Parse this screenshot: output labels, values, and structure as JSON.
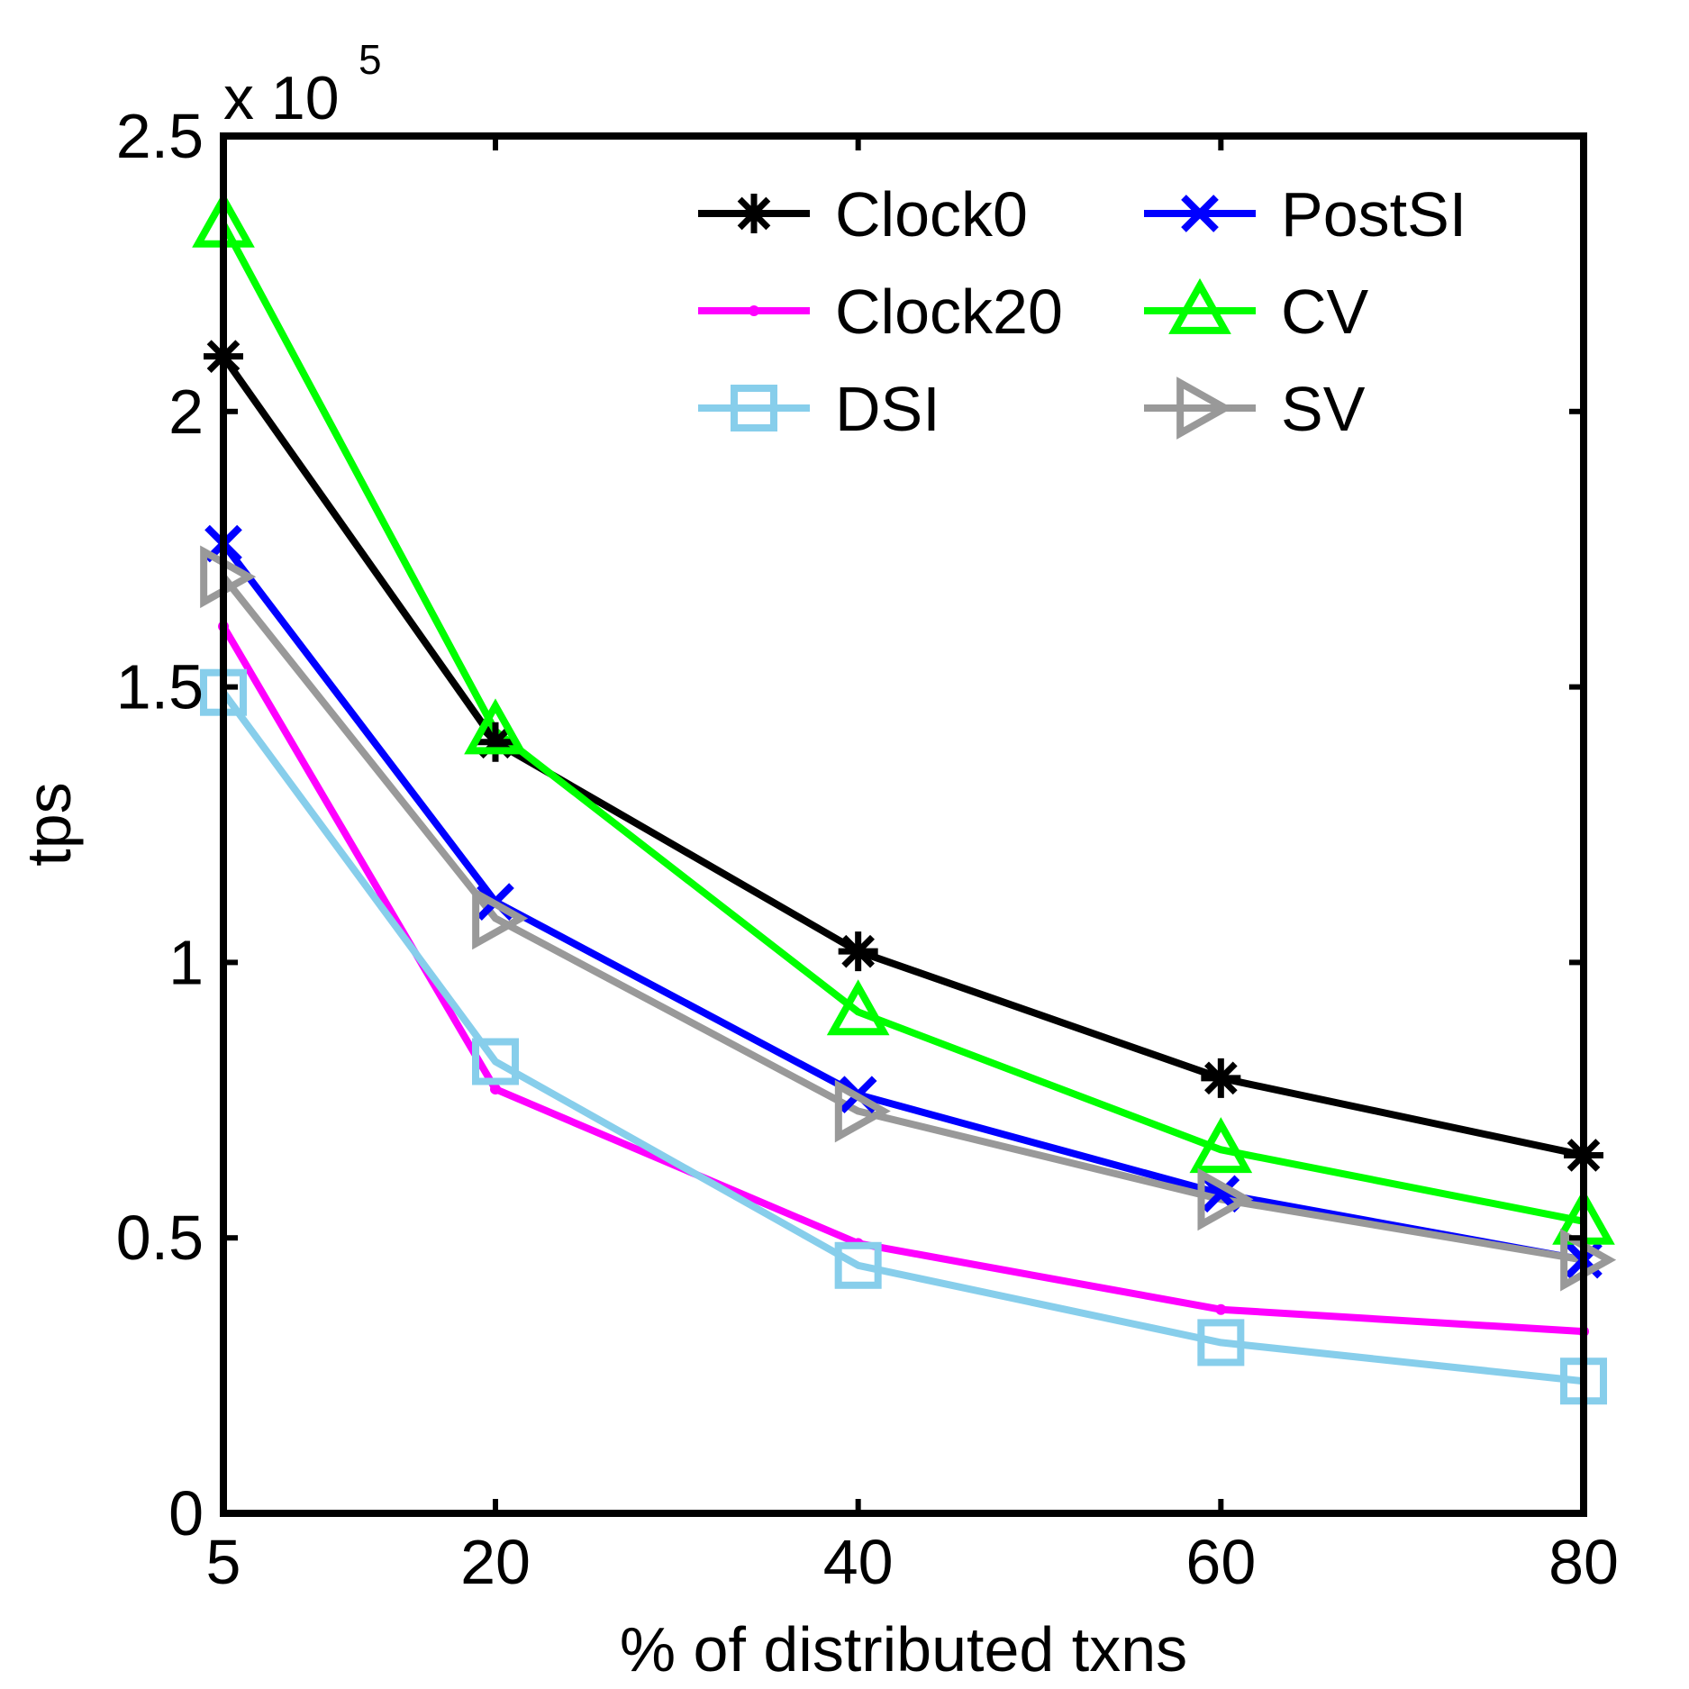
{
  "chart_data": {
    "type": "line",
    "title": "",
    "xlabel": "% of distributed txns",
    "ylabel": "tps",
    "y_multiplier_label": "x 10",
    "y_multiplier_exponent": "5",
    "x": [
      5,
      20,
      40,
      60,
      80
    ],
    "x_tick_labels": [
      "5",
      "20",
      "40",
      "60",
      "80"
    ],
    "xlim": [
      5,
      80
    ],
    "y_tick_values": [
      0,
      0.5,
      1,
      1.5,
      2,
      2.5
    ],
    "y_tick_labels": [
      "0",
      "0.5",
      "1",
      "1.5",
      "2",
      "2.5"
    ],
    "ylim": [
      0,
      2.5
    ],
    "y_units": "x 10^5 tps",
    "grid": false,
    "legend_position": "top-right",
    "series": [
      {
        "name": "Clock0",
        "color": "#000000",
        "marker": "asterisk",
        "values": [
          2.1,
          1.4,
          1.02,
          0.79,
          0.65
        ]
      },
      {
        "name": "PostSI",
        "color": "#0000ff",
        "marker": "x",
        "values": [
          1.76,
          1.11,
          0.76,
          0.58,
          0.46
        ]
      },
      {
        "name": "Clock20",
        "color": "#ff00ff",
        "marker": "dot",
        "values": [
          1.61,
          0.77,
          0.49,
          0.37,
          0.33
        ]
      },
      {
        "name": "CV",
        "color": "#00ff00",
        "marker": "triangle-up",
        "values": [
          2.34,
          1.42,
          0.91,
          0.66,
          0.53
        ]
      },
      {
        "name": "DSI",
        "color": "#87ceeb",
        "marker": "square",
        "values": [
          1.49,
          0.82,
          0.45,
          0.31,
          0.24
        ]
      },
      {
        "name": "SV",
        "color": "#999999",
        "marker": "triangle-right",
        "values": [
          1.7,
          1.08,
          0.73,
          0.57,
          0.46
        ]
      }
    ]
  }
}
